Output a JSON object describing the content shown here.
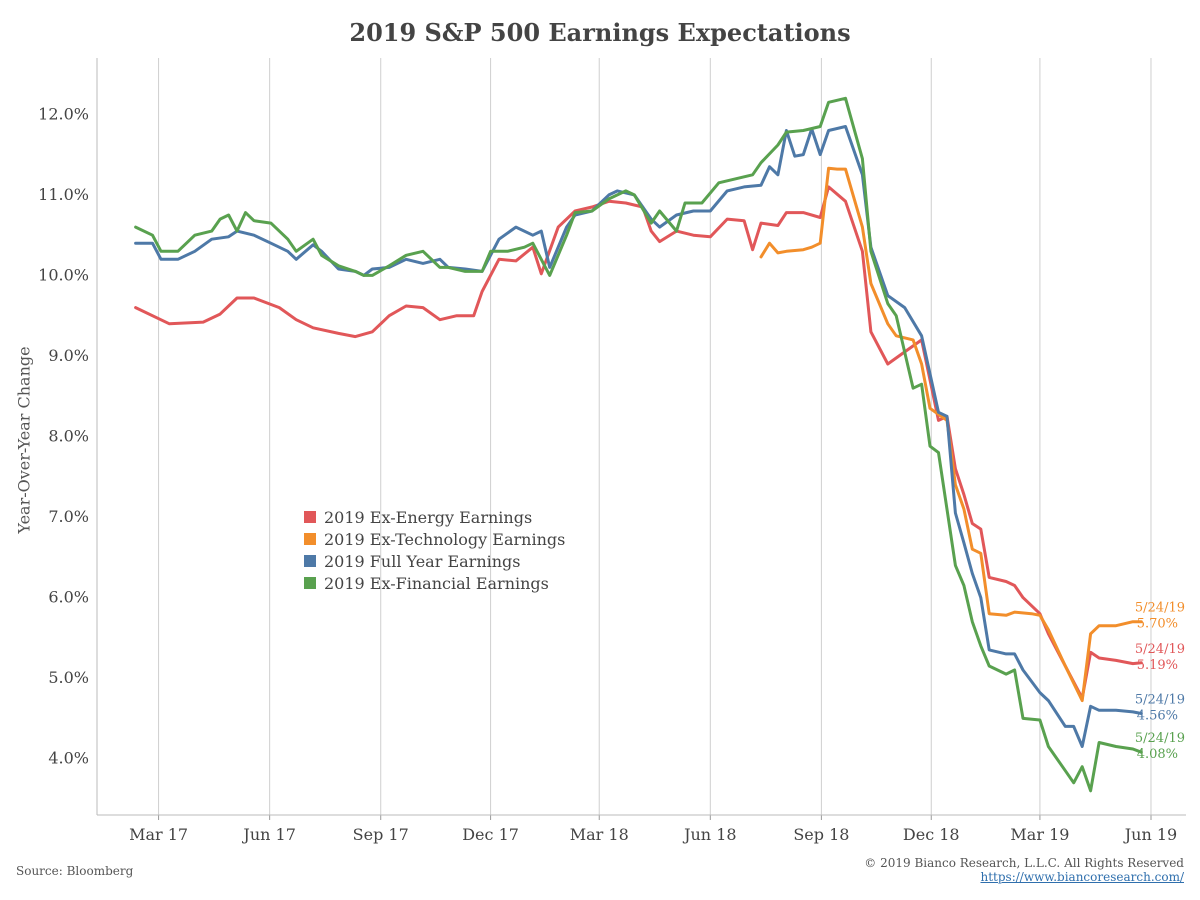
{
  "title": "2019 S&P 500 Earnings Expectations",
  "source": "Source: Bloomberg",
  "copyright": "© 2019 Bianco Research, L.L.C. All Rights Reserved",
  "url": "https://www.biancoresearch.com/",
  "chart_data": {
    "type": "line",
    "title": "2019 S&P 500 Earnings Expectations",
    "xlabel": "",
    "ylabel": "Year-Over-Year Change",
    "ylim": [
      3.3,
      12.7
    ],
    "yticks": [
      4,
      5,
      6,
      7,
      8,
      9,
      10,
      11,
      12
    ],
    "ytick_labels": [
      "4.0%",
      "5.0%",
      "6.0%",
      "7.0%",
      "8.0%",
      "9.0%",
      "10.0%",
      "11.0%",
      "12.0%"
    ],
    "xlim": [
      "2017-01-09",
      "2019-06-30"
    ],
    "xticks": [
      "2017-03-01",
      "2017-06-01",
      "2017-09-01",
      "2017-12-01",
      "2018-03-01",
      "2018-06-01",
      "2018-09-01",
      "2018-12-01",
      "2019-03-01",
      "2019-06-01"
    ],
    "xtick_labels": [
      "Mar 17",
      "Jun 17",
      "Sep 17",
      "Dec 17",
      "Mar 18",
      "Jun 18",
      "Sep 18",
      "Dec 18",
      "Mar 19",
      "Jun 19"
    ],
    "grid": "vertical",
    "legend": "center-left",
    "series": [
      {
        "name": "2019 Ex-Energy Earnings",
        "color": "#e15759",
        "end_date": "5/24/19",
        "end_label": "5.19%",
        "points": [
          [
            "2017-02-10",
            9.6
          ],
          [
            "2017-03-10",
            9.4
          ],
          [
            "2017-04-07",
            9.42
          ],
          [
            "2017-04-21",
            9.52
          ],
          [
            "2017-05-05",
            9.72
          ],
          [
            "2017-05-19",
            9.72
          ],
          [
            "2017-06-09",
            9.6
          ],
          [
            "2017-06-23",
            9.45
          ],
          [
            "2017-07-07",
            9.35
          ],
          [
            "2017-07-28",
            9.28
          ],
          [
            "2017-08-11",
            9.24
          ],
          [
            "2017-08-25",
            9.3
          ],
          [
            "2017-09-08",
            9.5
          ],
          [
            "2017-09-22",
            9.62
          ],
          [
            "2017-10-06",
            9.6
          ],
          [
            "2017-10-20",
            9.45
          ],
          [
            "2017-11-03",
            9.5
          ],
          [
            "2017-11-17",
            9.5
          ],
          [
            "2017-11-24",
            9.8
          ],
          [
            "2017-12-08",
            10.2
          ],
          [
            "2017-12-22",
            10.18
          ],
          [
            "2018-01-05",
            10.35
          ],
          [
            "2018-01-12",
            10.02
          ],
          [
            "2018-01-26",
            10.6
          ],
          [
            "2018-02-09",
            10.8
          ],
          [
            "2018-02-23",
            10.85
          ],
          [
            "2018-03-09",
            10.92
          ],
          [
            "2018-03-23",
            10.9
          ],
          [
            "2018-04-06",
            10.85
          ],
          [
            "2018-04-13",
            10.55
          ],
          [
            "2018-04-20",
            10.42
          ],
          [
            "2018-05-04",
            10.55
          ],
          [
            "2018-05-18",
            10.5
          ],
          [
            "2018-06-01",
            10.48
          ],
          [
            "2018-06-15",
            10.7
          ],
          [
            "2018-06-29",
            10.68
          ],
          [
            "2018-07-06",
            10.32
          ],
          [
            "2018-07-13",
            10.65
          ],
          [
            "2018-07-27",
            10.62
          ],
          [
            "2018-08-03",
            10.78
          ],
          [
            "2018-08-17",
            10.78
          ],
          [
            "2018-08-31",
            10.72
          ],
          [
            "2018-09-07",
            11.1
          ],
          [
            "2018-09-21",
            10.92
          ],
          [
            "2018-10-05",
            10.3
          ],
          [
            "2018-10-12",
            9.3
          ],
          [
            "2018-10-26",
            8.9
          ],
          [
            "2018-11-09",
            9.05
          ],
          [
            "2018-11-23",
            9.2
          ],
          [
            "2018-12-07",
            8.2
          ],
          [
            "2018-12-14",
            8.25
          ],
          [
            "2018-12-21",
            7.6
          ],
          [
            "2018-12-28",
            7.28
          ],
          [
            "2019-01-04",
            6.92
          ],
          [
            "2019-01-11",
            6.85
          ],
          [
            "2019-01-18",
            6.25
          ],
          [
            "2019-02-01",
            6.2
          ],
          [
            "2019-02-08",
            6.15
          ],
          [
            "2019-02-15",
            6.0
          ],
          [
            "2019-03-01",
            5.8
          ],
          [
            "2019-03-08",
            5.55
          ],
          [
            "2019-03-22",
            5.15
          ],
          [
            "2019-04-05",
            4.75
          ],
          [
            "2019-04-12",
            5.32
          ],
          [
            "2019-04-19",
            5.25
          ],
          [
            "2019-05-03",
            5.22
          ],
          [
            "2019-05-17",
            5.18
          ],
          [
            "2019-05-24",
            5.19
          ]
        ]
      },
      {
        "name": "2019 Ex-Technology Earnings",
        "color": "#f28e2b",
        "end_date": "5/24/19",
        "end_label": "5.70%",
        "points": [
          [
            "2018-07-13",
            10.23
          ],
          [
            "2018-07-20",
            10.4
          ],
          [
            "2018-07-27",
            10.28
          ],
          [
            "2018-08-03",
            10.3
          ],
          [
            "2018-08-17",
            10.32
          ],
          [
            "2018-08-24",
            10.35
          ],
          [
            "2018-08-31",
            10.4
          ],
          [
            "2018-09-07",
            11.33
          ],
          [
            "2018-09-14",
            11.32
          ],
          [
            "2018-09-21",
            11.32
          ],
          [
            "2018-10-05",
            10.6
          ],
          [
            "2018-10-12",
            9.9
          ],
          [
            "2018-10-26",
            9.4
          ],
          [
            "2018-11-02",
            9.25
          ],
          [
            "2018-11-16",
            9.2
          ],
          [
            "2018-11-23",
            8.9
          ],
          [
            "2018-11-30",
            8.35
          ],
          [
            "2018-12-14",
            8.2
          ],
          [
            "2018-12-21",
            7.4
          ],
          [
            "2018-12-28",
            7.1
          ],
          [
            "2019-01-04",
            6.6
          ],
          [
            "2019-01-11",
            6.55
          ],
          [
            "2019-01-18",
            5.8
          ],
          [
            "2019-02-01",
            5.78
          ],
          [
            "2019-02-08",
            5.82
          ],
          [
            "2019-02-22",
            5.8
          ],
          [
            "2019-03-01",
            5.78
          ],
          [
            "2019-03-08",
            5.6
          ],
          [
            "2019-03-22",
            5.15
          ],
          [
            "2019-04-05",
            4.72
          ],
          [
            "2019-04-12",
            5.55
          ],
          [
            "2019-04-19",
            5.65
          ],
          [
            "2019-05-03",
            5.65
          ],
          [
            "2019-05-17",
            5.7
          ],
          [
            "2019-05-24",
            5.7
          ]
        ]
      },
      {
        "name": "2019 Full Year Earnings",
        "color": "#4e79a7",
        "end_date": "5/24/19",
        "end_label": "4.56%",
        "points": [
          [
            "2017-02-10",
            10.4
          ],
          [
            "2017-02-24",
            10.4
          ],
          [
            "2017-03-03",
            10.2
          ],
          [
            "2017-03-17",
            10.2
          ],
          [
            "2017-03-31",
            10.3
          ],
          [
            "2017-04-14",
            10.45
          ],
          [
            "2017-04-28",
            10.48
          ],
          [
            "2017-05-05",
            10.55
          ],
          [
            "2017-05-19",
            10.5
          ],
          [
            "2017-06-02",
            10.4
          ],
          [
            "2017-06-16",
            10.3
          ],
          [
            "2017-06-23",
            10.2
          ],
          [
            "2017-07-07",
            10.38
          ],
          [
            "2017-07-14",
            10.3
          ],
          [
            "2017-07-28",
            10.08
          ],
          [
            "2017-08-11",
            10.05
          ],
          [
            "2017-08-18",
            10.0
          ],
          [
            "2017-08-25",
            10.08
          ],
          [
            "2017-09-08",
            10.1
          ],
          [
            "2017-09-22",
            10.2
          ],
          [
            "2017-10-06",
            10.15
          ],
          [
            "2017-10-20",
            10.2
          ],
          [
            "2017-10-27",
            10.1
          ],
          [
            "2017-11-10",
            10.08
          ],
          [
            "2017-11-24",
            10.05
          ],
          [
            "2017-12-08",
            10.45
          ],
          [
            "2017-12-22",
            10.6
          ],
          [
            "2018-01-05",
            10.5
          ],
          [
            "2018-01-12",
            10.55
          ],
          [
            "2018-01-19",
            10.1
          ],
          [
            "2018-02-02",
            10.6
          ],
          [
            "2018-02-09",
            10.75
          ],
          [
            "2018-02-23",
            10.8
          ],
          [
            "2018-03-09",
            11.0
          ],
          [
            "2018-03-16",
            11.05
          ],
          [
            "2018-03-30",
            11.0
          ],
          [
            "2018-04-13",
            10.7
          ],
          [
            "2018-04-20",
            10.6
          ],
          [
            "2018-05-04",
            10.75
          ],
          [
            "2018-05-18",
            10.8
          ],
          [
            "2018-06-01",
            10.8
          ],
          [
            "2018-06-15",
            11.05
          ],
          [
            "2018-06-29",
            11.1
          ],
          [
            "2018-07-13",
            11.12
          ],
          [
            "2018-07-20",
            11.35
          ],
          [
            "2018-07-27",
            11.25
          ],
          [
            "2018-08-03",
            11.8
          ],
          [
            "2018-08-10",
            11.48
          ],
          [
            "2018-08-17",
            11.5
          ],
          [
            "2018-08-24",
            11.82
          ],
          [
            "2018-08-31",
            11.5
          ],
          [
            "2018-09-07",
            11.8
          ],
          [
            "2018-09-21",
            11.85
          ],
          [
            "2018-10-05",
            11.25
          ],
          [
            "2018-10-12",
            10.35
          ],
          [
            "2018-10-26",
            9.75
          ],
          [
            "2018-11-09",
            9.6
          ],
          [
            "2018-11-23",
            9.25
          ],
          [
            "2018-12-07",
            8.3
          ],
          [
            "2018-12-14",
            8.25
          ],
          [
            "2018-12-21",
            7.05
          ],
          [
            "2018-12-28",
            6.68
          ],
          [
            "2019-01-04",
            6.3
          ],
          [
            "2019-01-11",
            6.0
          ],
          [
            "2019-01-18",
            5.35
          ],
          [
            "2019-02-01",
            5.3
          ],
          [
            "2019-02-08",
            5.3
          ],
          [
            "2019-02-15",
            5.1
          ],
          [
            "2019-03-01",
            4.82
          ],
          [
            "2019-03-08",
            4.72
          ],
          [
            "2019-03-22",
            4.4
          ],
          [
            "2019-03-29",
            4.4
          ],
          [
            "2019-04-05",
            4.15
          ],
          [
            "2019-04-12",
            4.65
          ],
          [
            "2019-04-19",
            4.6
          ],
          [
            "2019-05-03",
            4.6
          ],
          [
            "2019-05-17",
            4.58
          ],
          [
            "2019-05-24",
            4.56
          ]
        ]
      },
      {
        "name": "2019 Ex-Financial Earnings",
        "color": "#59a14f",
        "end_date": "5/24/19",
        "end_label": "4.08%",
        "points": [
          [
            "2017-02-10",
            10.6
          ],
          [
            "2017-02-24",
            10.5
          ],
          [
            "2017-03-03",
            10.3
          ],
          [
            "2017-03-17",
            10.3
          ],
          [
            "2017-03-31",
            10.5
          ],
          [
            "2017-04-14",
            10.55
          ],
          [
            "2017-04-21",
            10.7
          ],
          [
            "2017-04-28",
            10.75
          ],
          [
            "2017-05-05",
            10.55
          ],
          [
            "2017-05-12",
            10.78
          ],
          [
            "2017-05-19",
            10.68
          ],
          [
            "2017-06-02",
            10.65
          ],
          [
            "2017-06-16",
            10.45
          ],
          [
            "2017-06-23",
            10.3
          ],
          [
            "2017-07-07",
            10.45
          ],
          [
            "2017-07-14",
            10.25
          ],
          [
            "2017-07-28",
            10.12
          ],
          [
            "2017-08-11",
            10.05
          ],
          [
            "2017-08-18",
            10.0
          ],
          [
            "2017-08-25",
            10.0
          ],
          [
            "2017-09-08",
            10.12
          ],
          [
            "2017-09-22",
            10.25
          ],
          [
            "2017-10-06",
            10.3
          ],
          [
            "2017-10-20",
            10.1
          ],
          [
            "2017-10-27",
            10.1
          ],
          [
            "2017-11-10",
            10.05
          ],
          [
            "2017-11-24",
            10.05
          ],
          [
            "2017-12-01",
            10.3
          ],
          [
            "2017-12-15",
            10.3
          ],
          [
            "2017-12-29",
            10.35
          ],
          [
            "2018-01-05",
            10.4
          ],
          [
            "2018-01-19",
            10.0
          ],
          [
            "2018-02-02",
            10.5
          ],
          [
            "2018-02-09",
            10.78
          ],
          [
            "2018-02-23",
            10.8
          ],
          [
            "2018-03-09",
            10.95
          ],
          [
            "2018-03-23",
            11.05
          ],
          [
            "2018-03-30",
            11.0
          ],
          [
            "2018-04-13",
            10.65
          ],
          [
            "2018-04-20",
            10.8
          ],
          [
            "2018-05-04",
            10.55
          ],
          [
            "2018-05-11",
            10.9
          ],
          [
            "2018-05-25",
            10.9
          ],
          [
            "2018-06-08",
            11.15
          ],
          [
            "2018-06-22",
            11.2
          ],
          [
            "2018-07-06",
            11.25
          ],
          [
            "2018-07-13",
            11.4
          ],
          [
            "2018-07-27",
            11.62
          ],
          [
            "2018-08-03",
            11.78
          ],
          [
            "2018-08-17",
            11.8
          ],
          [
            "2018-08-31",
            11.85
          ],
          [
            "2018-09-07",
            12.15
          ],
          [
            "2018-09-21",
            12.2
          ],
          [
            "2018-10-05",
            11.45
          ],
          [
            "2018-10-12",
            10.3
          ],
          [
            "2018-10-26",
            9.65
          ],
          [
            "2018-11-02",
            9.5
          ],
          [
            "2018-11-16",
            8.6
          ],
          [
            "2018-11-23",
            8.65
          ],
          [
            "2018-11-30",
            7.88
          ],
          [
            "2018-12-07",
            7.8
          ],
          [
            "2018-12-21",
            6.4
          ],
          [
            "2018-12-28",
            6.15
          ],
          [
            "2019-01-04",
            5.7
          ],
          [
            "2019-01-11",
            5.4
          ],
          [
            "2019-01-18",
            5.15
          ],
          [
            "2019-02-01",
            5.05
          ],
          [
            "2019-02-08",
            5.1
          ],
          [
            "2019-02-15",
            4.5
          ],
          [
            "2019-03-01",
            4.48
          ],
          [
            "2019-03-08",
            4.15
          ],
          [
            "2019-03-22",
            3.85
          ],
          [
            "2019-03-29",
            3.7
          ],
          [
            "2019-04-05",
            3.9
          ],
          [
            "2019-04-12",
            3.6
          ],
          [
            "2019-04-19",
            4.2
          ],
          [
            "2019-05-03",
            4.15
          ],
          [
            "2019-05-17",
            4.12
          ],
          [
            "2019-05-24",
            4.08
          ]
        ]
      }
    ]
  }
}
